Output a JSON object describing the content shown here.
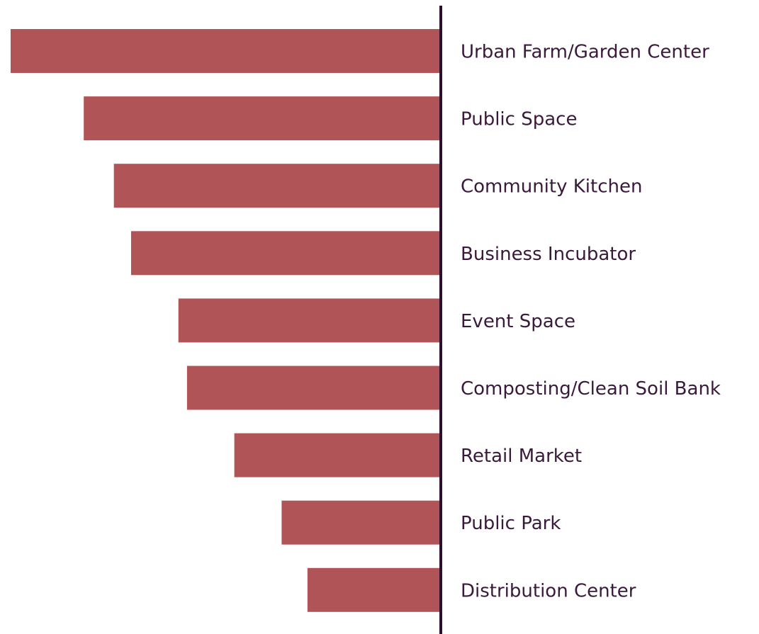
{
  "chart_data": {
    "type": "hbar-left",
    "categories": [
      "Urban Farm/Garden Center",
      "Public Space",
      "Community Kitchen",
      "Business Incubator",
      "Event Space",
      "Composting/Clean Soil Bank",
      "Retail Market",
      "Public Park",
      "Distribution Center"
    ],
    "values": [
      100,
      83,
      76,
      72,
      61,
      59,
      48,
      37,
      31
    ],
    "color": "#b05457",
    "xlim": [
      0,
      100
    ]
  }
}
